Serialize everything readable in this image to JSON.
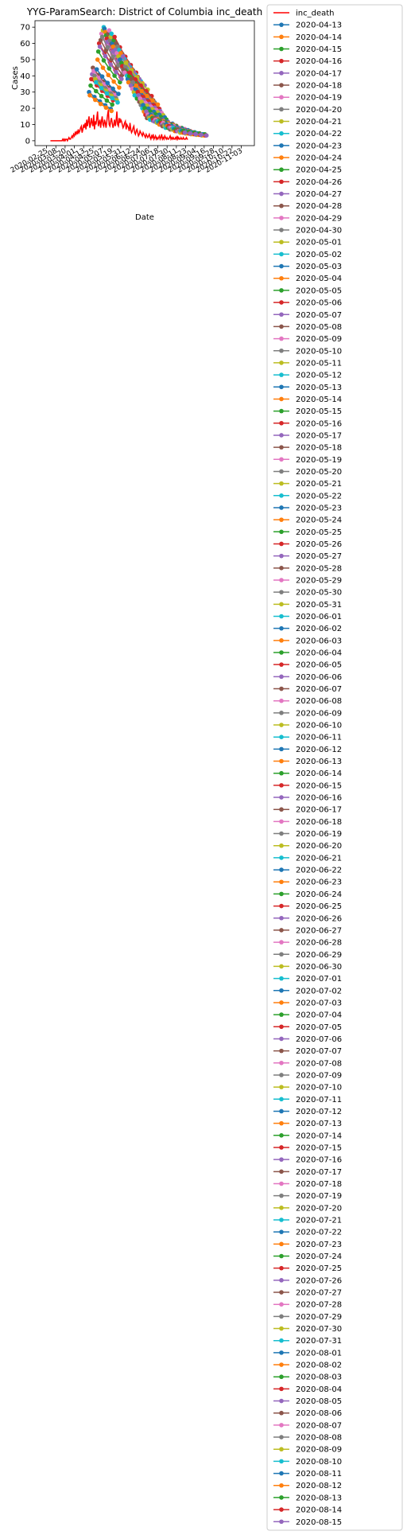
{
  "chart_data": {
    "type": "line",
    "title": "YYG-ParamSearch: District of Columbia inc_death",
    "xlabel": "Date",
    "ylabel": "Cases",
    "ylim": [
      -3,
      74
    ],
    "yticks": [
      0,
      10,
      20,
      30,
      40,
      50,
      60,
      70
    ],
    "xlim": [
      "2020-02-10",
      "2020-11-20"
    ],
    "xticks": [
      "2020-02-25",
      "2020-03-08",
      "2020-03-20",
      "2020-04-01",
      "2020-04-13",
      "2020-04-25",
      "2020-05-07",
      "2020-05-19",
      "2020-05-31",
      "2020-06-12",
      "2020-06-24",
      "2020-07-06",
      "2020-07-18",
      "2020-07-30",
      "2020-08-11",
      "2020-08-23",
      "2020-09-04",
      "2020-09-16",
      "2020-09-28",
      "2020-10-10",
      "2020-10-22",
      "2020-11-03"
    ],
    "legend_position": "outside-right",
    "grid": false,
    "observed": {
      "name": "inc_death",
      "color": "#ff0000",
      "start": "2020-03-01",
      "values": [
        0,
        0,
        0,
        0,
        0,
        0,
        0,
        0,
        0,
        0,
        0,
        0,
        0,
        0,
        0,
        0,
        1,
        0,
        1,
        0,
        1,
        1,
        0,
        1,
        2,
        1,
        1,
        2,
        3,
        2,
        4,
        3,
        5,
        4,
        6,
        4,
        7,
        5,
        6,
        8,
        9,
        5,
        7,
        10,
        8,
        11,
        7,
        13,
        9,
        12,
        15,
        8,
        10,
        14,
        11,
        9,
        16,
        7,
        12,
        10,
        14,
        18,
        9,
        11,
        13,
        8,
        12,
        15,
        10,
        9,
        13,
        11,
        8,
        12,
        16,
        19,
        10,
        9,
        12,
        14,
        11,
        8,
        10,
        13,
        9,
        12,
        18,
        10,
        9,
        14,
        11,
        13,
        12,
        10,
        8,
        9,
        11,
        12,
        7,
        10,
        9,
        8,
        6,
        11,
        7,
        5,
        6,
        8,
        9,
        5,
        4,
        6,
        7,
        5,
        3,
        4,
        6,
        5,
        4,
        3,
        5,
        4,
        3,
        2,
        4,
        3,
        2,
        3,
        4,
        2,
        1,
        3,
        2,
        4,
        1,
        2,
        3,
        1,
        2,
        1,
        2,
        3,
        1,
        2,
        4,
        1,
        2,
        1,
        3,
        2,
        1,
        2,
        1,
        1,
        2,
        3,
        1,
        2,
        1,
        2,
        1,
        1,
        2,
        1,
        3,
        1,
        2,
        1,
        1,
        2,
        1,
        1,
        2,
        1,
        1,
        1,
        2,
        1,
        1
      ]
    },
    "forecast_colors": [
      "#1f77b4",
      "#ff7f0e",
      "#2ca02c",
      "#d62728",
      "#9467bd",
      "#8c564b",
      "#e377c2",
      "#7f7f7f",
      "#bcbd22",
      "#17becf"
    ],
    "forecast_series": [
      "2020-04-13",
      "2020-04-14",
      "2020-04-15",
      "2020-04-16",
      "2020-04-17",
      "2020-04-18",
      "2020-04-19",
      "2020-04-20",
      "2020-04-21",
      "2020-04-22",
      "2020-04-23",
      "2020-04-24",
      "2020-04-25",
      "2020-04-26",
      "2020-04-27",
      "2020-04-28",
      "2020-04-29",
      "2020-04-30",
      "2020-05-01",
      "2020-05-02",
      "2020-05-03",
      "2020-05-04",
      "2020-05-05",
      "2020-05-06",
      "2020-05-07",
      "2020-05-08",
      "2020-05-09",
      "2020-05-10",
      "2020-05-11",
      "2020-05-12",
      "2020-05-13",
      "2020-05-14",
      "2020-05-15",
      "2020-05-16",
      "2020-05-17",
      "2020-05-18",
      "2020-05-19",
      "2020-05-20",
      "2020-05-21",
      "2020-05-22",
      "2020-05-23",
      "2020-05-24",
      "2020-05-25",
      "2020-05-26",
      "2020-05-27",
      "2020-05-28",
      "2020-05-29",
      "2020-05-30",
      "2020-05-31",
      "2020-06-01",
      "2020-06-02",
      "2020-06-03",
      "2020-06-04",
      "2020-06-05",
      "2020-06-06",
      "2020-06-07",
      "2020-06-08",
      "2020-06-09",
      "2020-06-10",
      "2020-06-11",
      "2020-06-12",
      "2020-06-13",
      "2020-06-14",
      "2020-06-15",
      "2020-06-16",
      "2020-06-17",
      "2020-06-18",
      "2020-06-19",
      "2020-06-20",
      "2020-06-21",
      "2020-06-22",
      "2020-06-23",
      "2020-06-24",
      "2020-06-25",
      "2020-06-26",
      "2020-06-27",
      "2020-06-28",
      "2020-06-29",
      "2020-06-30",
      "2020-07-01",
      "2020-07-02",
      "2020-07-03",
      "2020-07-04",
      "2020-07-05",
      "2020-07-06",
      "2020-07-07",
      "2020-07-08",
      "2020-07-09",
      "2020-07-10",
      "2020-07-11",
      "2020-07-12",
      "2020-07-13",
      "2020-07-14",
      "2020-07-15",
      "2020-07-16",
      "2020-07-17",
      "2020-07-18",
      "2020-07-19",
      "2020-07-20",
      "2020-07-21",
      "2020-07-22",
      "2020-07-23",
      "2020-07-24",
      "2020-07-25",
      "2020-07-26",
      "2020-07-27",
      "2020-07-28",
      "2020-07-29",
      "2020-07-30",
      "2020-07-31",
      "2020-08-01",
      "2020-08-02",
      "2020-08-03",
      "2020-08-04",
      "2020-08-05",
      "2020-08-06",
      "2020-08-07",
      "2020-08-08",
      "2020-08-09",
      "2020-08-10",
      "2020-08-11",
      "2020-08-12",
      "2020-08-13",
      "2020-08-14",
      "2020-08-15"
    ],
    "forecast_points": 5,
    "forecast_interval_days": 7,
    "forecast_first_values": [
      30,
      28,
      34,
      38,
      41,
      45,
      43,
      40,
      38,
      36,
      44,
      50,
      55,
      60,
      58,
      62,
      66,
      64,
      68,
      70,
      69,
      67,
      65,
      63,
      61,
      66,
      68,
      62,
      64,
      66,
      60,
      58,
      62,
      64,
      56,
      60,
      54,
      58,
      52,
      56,
      50,
      54,
      48,
      46,
      52,
      44,
      42,
      46,
      48,
      40,
      38,
      36,
      40,
      42,
      34,
      38,
      32,
      36,
      30,
      28,
      32,
      34,
      26,
      30,
      28,
      24,
      26,
      22,
      24,
      20,
      22,
      18,
      20,
      16,
      18,
      14,
      16,
      15,
      14,
      13,
      16,
      15,
      14,
      13,
      12,
      14,
      13,
      12,
      11,
      12,
      11,
      10,
      12,
      11,
      10,
      9,
      11,
      10,
      9,
      8,
      10,
      9,
      8,
      9,
      8,
      7,
      8,
      7,
      7,
      8,
      7,
      6,
      7,
      6,
      6,
      7,
      6,
      6,
      5,
      6,
      6,
      5,
      6,
      5,
      5
    ],
    "forecast_decay": 0.9
  }
}
